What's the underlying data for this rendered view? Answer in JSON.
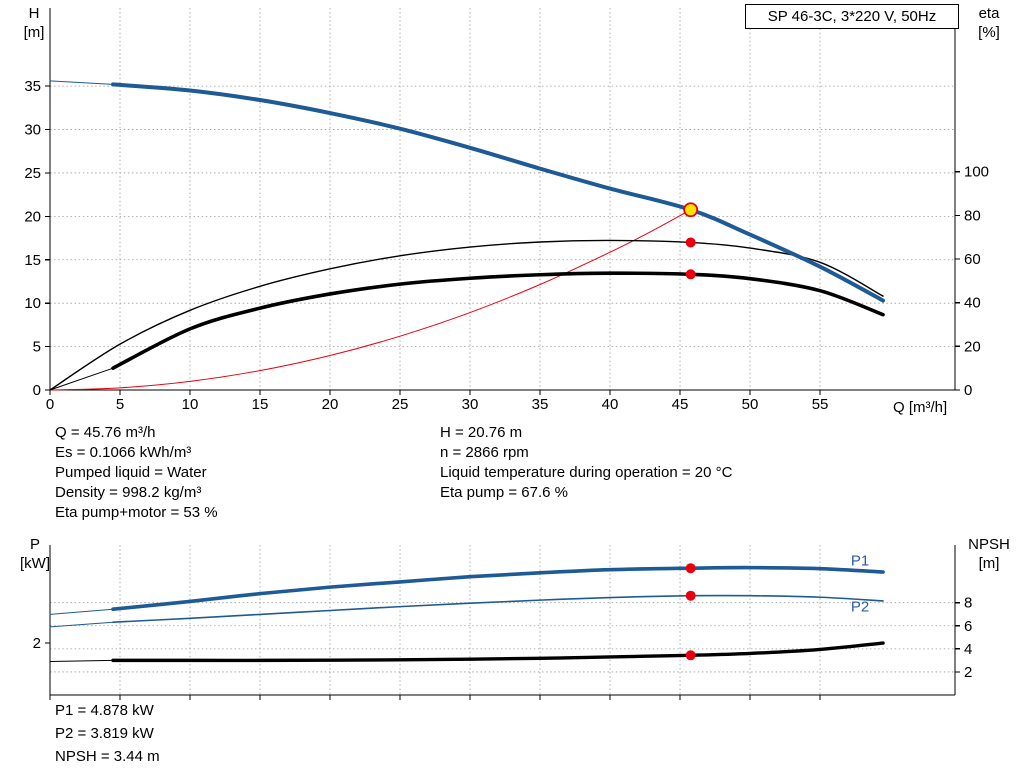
{
  "title_box": {
    "label": "SP 46-3C, 3*220 V, 50Hz"
  },
  "colors": {
    "curve_blue": "#1e5a96",
    "label_blue": "#2a5caa",
    "red": "#e8000e",
    "yellow": "#ffe100",
    "black": "#000000",
    "grid": "#9a9a9a"
  },
  "top_chart_labels": {
    "left_l1": "H",
    "left_l2": "[m]",
    "right_l1": "eta",
    "right_l2": "[%]",
    "x": "Q [m³/h]"
  },
  "bottom_chart_labels": {
    "left_l1": "P",
    "left_l2": "[kW]",
    "right_l1": "NPSH",
    "right_l2": "[m]"
  },
  "info_block": {
    "left": [
      "Q = 45.76 m³/h",
      "Es = 0.1066 kWh/m³",
      "Pumped liquid = Water",
      "Density = 998.2 kg/m³",
      "Eta pump+motor = 53 %"
    ],
    "right": [
      "H = 20.76 m",
      "n = 2866 rpm",
      "Liquid temperature during operation = 20 °C",
      "Eta pump = 67.6 %"
    ]
  },
  "bottom_block": [
    "P1 = 4.878 kW",
    "P2 = 3.819 kW",
    "NPSH = 3.44 m"
  ],
  "chart_data": [
    {
      "name": "qh-eta-chart",
      "type": "line",
      "title": "SP 46-3C, 3*220 V, 50Hz",
      "x_axis": {
        "label": "Q [m³/h]",
        "range": [
          0,
          64.64
        ],
        "ticks": [
          0,
          5,
          10,
          15,
          20,
          25,
          30,
          35,
          40,
          45,
          50,
          55
        ],
        "show_labels": true
      },
      "left_axis": {
        "label": "H [m]",
        "range": [
          0,
          44
        ],
        "ticks": [
          0,
          5,
          10,
          15,
          20,
          25,
          30,
          35
        ]
      },
      "right_axis": {
        "label": "eta [%]",
        "range": [
          0,
          175
        ],
        "ticks": [
          0,
          20,
          40,
          60,
          80,
          100
        ]
      },
      "grid_h": "left",
      "legend": "off",
      "duty_point": {
        "Q": 45.76,
        "H": 20.76,
        "eta_pump": 67.6,
        "eta_pump_motor": 53
      },
      "series": [
        {
          "name": "system-curve",
          "axis": "left",
          "color": "#e8000e",
          "width": 1,
          "x": [
            0,
            5,
            10,
            15,
            20,
            25,
            30,
            35,
            40,
            43,
            45.76
          ],
          "y": [
            0,
            0.25,
            0.99,
            2.23,
            3.97,
            6.2,
            8.92,
            12.15,
            15.87,
            18.32,
            20.76
          ]
        },
        {
          "name": "eta-pump-curve",
          "axis": "right",
          "color": "#000000",
          "width": 1.4,
          "x": [
            0,
            5,
            10,
            15,
            20,
            25,
            30,
            35,
            40,
            45.76,
            50,
            55,
            59.5
          ],
          "y": [
            0,
            21,
            36.5,
            47.5,
            55.5,
            61.5,
            65.5,
            67.8,
            68.5,
            67.6,
            65,
            58.5,
            43
          ]
        },
        {
          "name": "eta-pump-motor-lead",
          "axis": "right",
          "color": "#000000",
          "width": 1,
          "x": [
            0,
            4.5
          ],
          "y": [
            0,
            10
          ]
        },
        {
          "name": "eta-pump-motor-curve",
          "axis": "right",
          "color": "#000000",
          "width": 3.6,
          "x": [
            4.5,
            10,
            15,
            20,
            25,
            30,
            35,
            40,
            45.76,
            50,
            55,
            59.5
          ],
          "y": [
            10,
            28,
            37.5,
            44,
            48.5,
            51.2,
            52.8,
            53.5,
            53,
            51,
            45.5,
            34.5
          ]
        },
        {
          "name": "head-curve-lead",
          "axis": "left",
          "color": "#1e5a96",
          "width": 1,
          "x": [
            0,
            4.5
          ],
          "y": [
            35.6,
            35.2
          ]
        },
        {
          "name": "head-curve",
          "axis": "left",
          "color": "#1e5a96",
          "width": 4,
          "x": [
            4.5,
            10,
            15,
            20,
            25,
            30,
            35,
            40,
            45.76,
            50,
            55,
            59.5
          ],
          "y": [
            35.2,
            34.5,
            33.4,
            31.9,
            30.1,
            27.9,
            25.5,
            23.2,
            20.76,
            17.9,
            14.2,
            10.3
          ]
        }
      ],
      "markers": [
        {
          "name": "eta-pump-point",
          "axis": "right",
          "x": 45.76,
          "y": 67.6,
          "r": 5,
          "fill": "#e8000e"
        },
        {
          "name": "eta-pump-motor-point",
          "axis": "right",
          "x": 45.76,
          "y": 53,
          "r": 5,
          "fill": "#e8000e"
        },
        {
          "name": "duty-point-marker",
          "axis": "left",
          "x": 45.76,
          "y": 20.76,
          "r": 6.5,
          "fill": "#ffe100",
          "stroke": "#e8000e",
          "stroke_width": 1.8
        }
      ],
      "curve_labels": []
    },
    {
      "name": "power-npsh-chart",
      "type": "line",
      "x_axis": {
        "label": "",
        "range": [
          0,
          64.64
        ],
        "ticks": [
          0,
          5,
          10,
          15,
          20,
          25,
          30,
          35,
          40,
          45,
          50,
          55
        ],
        "show_labels": false
      },
      "left_axis": {
        "label": "P [kW]",
        "range": [
          0,
          5.77
        ],
        "ticks": [
          2
        ]
      },
      "right_axis": {
        "label": "NPSH [m]",
        "range": [
          0,
          13
        ],
        "ticks": [
          2,
          4,
          6,
          8
        ]
      },
      "grid_h": "right",
      "duty_point": {
        "Q": 45.76,
        "P1": 4.878,
        "P2": 3.819,
        "NPSH": 3.44
      },
      "series": [
        {
          "name": "p2-lead",
          "axis": "left",
          "color": "#1e5a96",
          "width": 1,
          "x": [
            0,
            4.5
          ],
          "y": [
            2.62,
            2.8
          ]
        },
        {
          "name": "p2-curve",
          "axis": "left",
          "color": "#1e5a96",
          "width": 1.6,
          "x": [
            4.5,
            10,
            15,
            20,
            25,
            30,
            35,
            40,
            45.76,
            50,
            55,
            59.5
          ],
          "y": [
            2.8,
            2.95,
            3.1,
            3.25,
            3.4,
            3.53,
            3.65,
            3.75,
            3.819,
            3.82,
            3.76,
            3.62
          ]
        },
        {
          "name": "p1-lead",
          "axis": "left",
          "color": "#1e5a96",
          "width": 1,
          "x": [
            0,
            4.5
          ],
          "y": [
            3.1,
            3.3
          ]
        },
        {
          "name": "p1-curve",
          "axis": "left",
          "color": "#1e5a96",
          "width": 3.6,
          "x": [
            4.5,
            10,
            15,
            20,
            25,
            30,
            35,
            40,
            45.76,
            50,
            55,
            59.5
          ],
          "y": [
            3.3,
            3.6,
            3.9,
            4.15,
            4.35,
            4.55,
            4.7,
            4.82,
            4.878,
            4.9,
            4.86,
            4.73
          ]
        },
        {
          "name": "npsh-lead",
          "axis": "right",
          "color": "#000000",
          "width": 1,
          "x": [
            0,
            4.5
          ],
          "y": [
            2.9,
            3.0
          ]
        },
        {
          "name": "npsh-curve",
          "axis": "right",
          "color": "#000000",
          "width": 3.4,
          "x": [
            4.5,
            10,
            15,
            20,
            25,
            30,
            35,
            40,
            45.76,
            50,
            55,
            59.5
          ],
          "y": [
            3.0,
            3.0,
            3.0,
            3.02,
            3.05,
            3.1,
            3.18,
            3.3,
            3.44,
            3.6,
            3.95,
            4.5
          ]
        }
      ],
      "markers": [
        {
          "name": "p1-point",
          "axis": "left",
          "x": 45.76,
          "y": 4.878,
          "r": 5,
          "fill": "#e8000e"
        },
        {
          "name": "p2-point",
          "axis": "left",
          "x": 45.76,
          "y": 3.819,
          "r": 5,
          "fill": "#e8000e"
        },
        {
          "name": "npsh-point",
          "axis": "right",
          "x": 45.76,
          "y": 3.44,
          "r": 5,
          "fill": "#e8000e"
        }
      ],
      "curve_labels": [
        {
          "text": "P1",
          "axis": "left",
          "q": 57.2,
          "v": 4.98,
          "color": "#2a5caa"
        },
        {
          "text": "P2",
          "axis": "left",
          "q": 57.2,
          "v": 3.22,
          "color": "#2a5caa"
        }
      ]
    }
  ]
}
